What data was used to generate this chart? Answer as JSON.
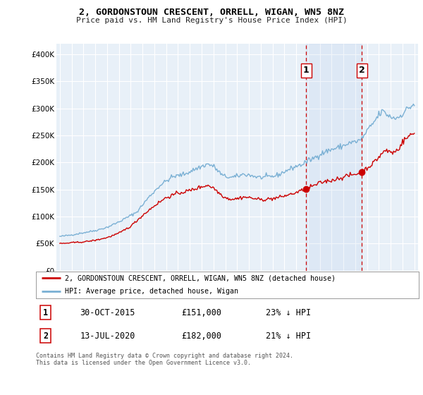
{
  "title": "2, GORDONSTOUN CRESCENT, ORRELL, WIGAN, WN5 8NZ",
  "subtitle": "Price paid vs. HM Land Registry's House Price Index (HPI)",
  "background_color": "#ffffff",
  "plot_bg_color": "#e8f0f8",
  "grid_color": "#ffffff",
  "ylim": [
    0,
    420000
  ],
  "yticks": [
    0,
    50000,
    100000,
    150000,
    200000,
    250000,
    300000,
    350000,
    400000
  ],
  "ytick_labels": [
    "£0",
    "£50K",
    "£100K",
    "£150K",
    "£200K",
    "£250K",
    "£300K",
    "£350K",
    "£400K"
  ],
  "hpi_color": "#7ab0d4",
  "property_color": "#cc0000",
  "marker1_x": 2015.83,
  "marker1_y": 151000,
  "marker2_x": 2020.54,
  "marker2_y": 182000,
  "legend_property": "2, GORDONSTOUN CRESCENT, ORRELL, WIGAN, WN5 8NZ (detached house)",
  "legend_hpi": "HPI: Average price, detached house, Wigan",
  "table_row1": [
    "1",
    "30-OCT-2015",
    "£151,000",
    "23% ↓ HPI"
  ],
  "table_row2": [
    "2",
    "13-JUL-2020",
    "£182,000",
    "21% ↓ HPI"
  ],
  "footer": "Contains HM Land Registry data © Crown copyright and database right 2024.\nThis data is licensed under the Open Government Licence v3.0.",
  "shade_x1": 2015.83,
  "shade_x2": 2020.54,
  "xlim_left": 1994.7,
  "xlim_right": 2025.3
}
